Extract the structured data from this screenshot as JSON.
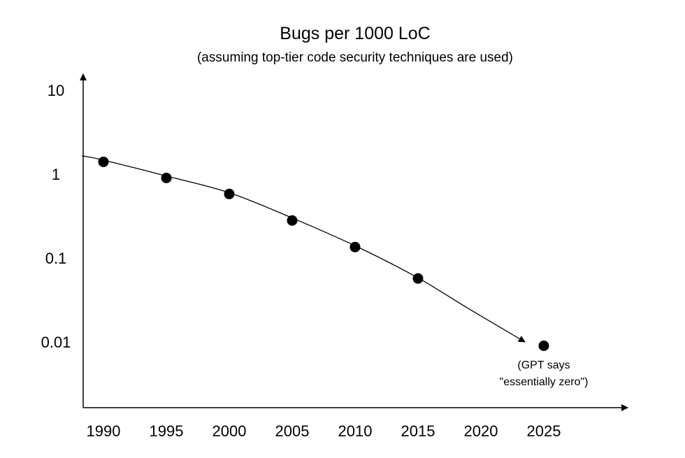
{
  "chart_data": {
    "type": "scatter",
    "title": "Bugs per 1000 LoC",
    "subtitle": "(assuming top-tier code security techniques are used)",
    "xlabel": "",
    "ylabel": "",
    "y_scale": "log",
    "x_ticks": [
      "1990",
      "1995",
      "2000",
      "2005",
      "2010",
      "2015",
      "2020",
      "2025"
    ],
    "y_ticks": [
      "10",
      "1",
      "0.1",
      "0.01"
    ],
    "y_tick_values": [
      10,
      1,
      0.1,
      0.01
    ],
    "points": [
      {
        "x": 1990,
        "y": 1.4
      },
      {
        "x": 1995,
        "y": 0.9
      },
      {
        "x": 2000,
        "y": 0.58
      },
      {
        "x": 2005,
        "y": 0.28
      },
      {
        "x": 2010,
        "y": 0.135
      },
      {
        "x": 2015,
        "y": 0.057
      },
      {
        "x": 2025,
        "y": 0.009
      }
    ],
    "trend_curve": [
      {
        "x": 1988.3,
        "y": 1.65
      },
      {
        "x": 1990,
        "y": 1.47
      },
      {
        "x": 1995,
        "y": 0.95
      },
      {
        "x": 2000,
        "y": 0.6
      },
      {
        "x": 2005,
        "y": 0.3
      },
      {
        "x": 2010,
        "y": 0.14
      },
      {
        "x": 2015,
        "y": 0.058
      },
      {
        "x": 2019,
        "y": 0.025
      },
      {
        "x": 2023.5,
        "y": 0.01
      }
    ],
    "annotation": {
      "lines": [
        "(GPT says",
        "\"essentially zero\")"
      ],
      "x": 2025,
      "y": 0.009
    },
    "grid": false,
    "legend": "none"
  }
}
